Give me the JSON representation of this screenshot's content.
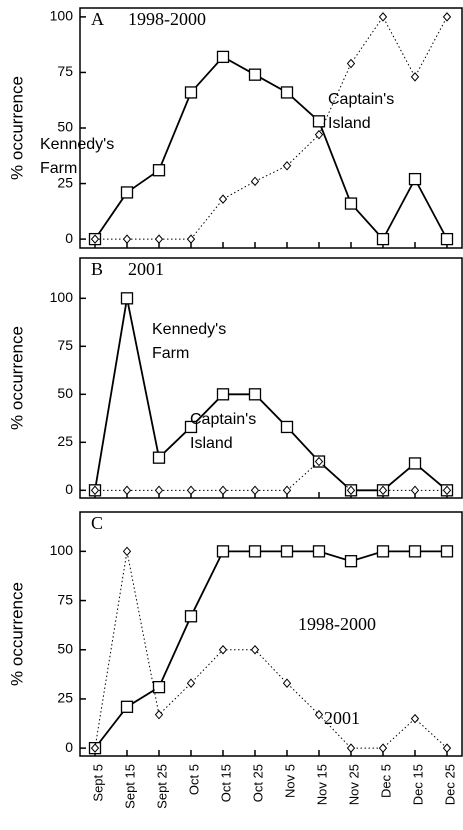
{
  "chart_data": [
    {
      "type": "line",
      "panel": "A",
      "title": "1998-2000",
      "ylabel": "% occurrence",
      "ylim": [
        -4,
        104
      ],
      "yticks": [
        0,
        25,
        50,
        75,
        100
      ],
      "series": [
        {
          "name": "Kennedy's Farm",
          "color": "#000000",
          "marker": "square",
          "style": "solid",
          "values": [
            0,
            21,
            31,
            66,
            82,
            74,
            66,
            53,
            16,
            0,
            27,
            0
          ]
        },
        {
          "name": "Captain's Island",
          "color": "#000000",
          "marker": "diamond",
          "style": "dotted",
          "values": [
            0,
            0,
            0,
            0,
            18,
            26,
            33,
            47,
            79,
            100,
            73,
            100
          ]
        }
      ]
    },
    {
      "type": "line",
      "panel": "B",
      "title": "2001",
      "ylabel": "% occurrence",
      "ylim": [
        -4,
        121
      ],
      "yticks": [
        0,
        25,
        50,
        75,
        100
      ],
      "series": [
        {
          "name": "Kennedy's Farm",
          "color": "#000000",
          "marker": "square",
          "style": "solid",
          "values": [
            0,
            100,
            17,
            33,
            50,
            50,
            33,
            15,
            0,
            0,
            14,
            0
          ]
        },
        {
          "name": "Captain's Island",
          "color": "#000000",
          "marker": "diamond",
          "style": "dotted",
          "values": [
            0,
            0,
            0,
            0,
            0,
            0,
            0,
            15,
            0,
            0,
            0,
            0
          ]
        }
      ]
    },
    {
      "type": "line",
      "panel": "C",
      "ylabel": "% occurrence",
      "ylim": [
        -4,
        120
      ],
      "yticks": [
        0,
        25,
        50,
        75,
        100
      ],
      "categories": [
        "Sept 5",
        "Sept 15",
        "Sept 25",
        "Oct 5",
        "Oct 15",
        "Oct 25",
        "Nov 5",
        "Nov 15",
        "Nov 25",
        "Dec 5",
        "Dec 15",
        "Dec 25"
      ],
      "series": [
        {
          "name": "1998-2000",
          "color": "#000000",
          "marker": "square",
          "style": "solid",
          "values": [
            0,
            21,
            31,
            67,
            100,
            100,
            100,
            100,
            95,
            100,
            100,
            100
          ]
        },
        {
          "name": "2001",
          "color": "#000000",
          "marker": "diamond",
          "style": "dotted",
          "values": [
            0,
            100,
            17,
            33,
            50,
            50,
            33,
            17,
            0,
            0,
            15,
            0
          ]
        }
      ]
    }
  ]
}
